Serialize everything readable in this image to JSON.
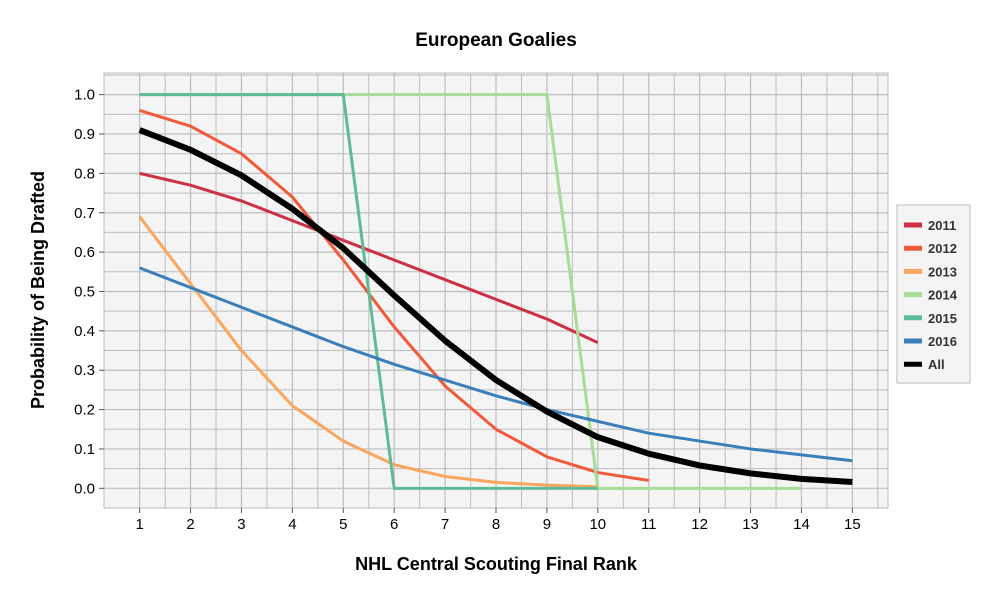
{
  "chart_data": {
    "type": "line",
    "title": "European Goalies",
    "xlabel": "NHL Central Scouting Final Rank",
    "ylabel": "Probability of Being Drafted",
    "xlim": [
      0.3,
      15.7
    ],
    "ylim": [
      -0.05,
      1.055
    ],
    "xticks": [
      1,
      2,
      3,
      4,
      5,
      6,
      7,
      8,
      9,
      10,
      11,
      12,
      13,
      14,
      15
    ],
    "yticks": [
      0.0,
      0.1,
      0.2,
      0.3,
      0.4,
      0.5,
      0.6,
      0.7,
      0.8,
      0.9,
      1.0
    ],
    "grid": true,
    "legend_position": "right",
    "series": [
      {
        "name": "2011",
        "color": "#cb3044",
        "width": 3,
        "x": [
          1,
          2,
          3,
          4,
          5,
          6,
          7,
          8,
          9,
          10
        ],
        "values": [
          0.8,
          0.77,
          0.73,
          0.68,
          0.63,
          0.58,
          0.53,
          0.48,
          0.43,
          0.37
        ]
      },
      {
        "name": "2012",
        "color": "#f05a3a",
        "width": 3,
        "x": [
          1,
          2,
          3,
          4,
          5,
          6,
          7,
          8,
          9,
          10,
          11
        ],
        "values": [
          0.96,
          0.92,
          0.85,
          0.74,
          0.58,
          0.41,
          0.26,
          0.15,
          0.08,
          0.04,
          0.02
        ]
      },
      {
        "name": "2013",
        "color": "#fca55d",
        "width": 3,
        "x": [
          1,
          2,
          3,
          4,
          5,
          6,
          7,
          8,
          9,
          10
        ],
        "values": [
          0.69,
          0.52,
          0.35,
          0.21,
          0.12,
          0.06,
          0.03,
          0.015,
          0.008,
          0.004
        ]
      },
      {
        "name": "2014",
        "color": "#a6dc93",
        "width": 3,
        "x": [
          1,
          2,
          3,
          4,
          5,
          6,
          7,
          8,
          9,
          10,
          11,
          12,
          13,
          14
        ],
        "values": [
          1,
          1,
          1,
          1,
          1,
          1,
          1,
          1,
          1,
          0,
          0,
          0,
          0,
          0
        ]
      },
      {
        "name": "2015",
        "color": "#5dbb96",
        "width": 3,
        "x": [
          1,
          2,
          3,
          4,
          5,
          6,
          7,
          8,
          9,
          10
        ],
        "values": [
          1,
          1,
          1,
          1,
          1,
          0,
          0,
          0,
          0,
          0
        ]
      },
      {
        "name": "2016",
        "color": "#3a7fba",
        "width": 3,
        "x": [
          1,
          2,
          3,
          4,
          5,
          6,
          7,
          8,
          9,
          10,
          11,
          12,
          13,
          14,
          15
        ],
        "values": [
          0.56,
          0.51,
          0.46,
          0.41,
          0.36,
          0.315,
          0.275,
          0.235,
          0.2,
          0.17,
          0.14,
          0.12,
          0.1,
          0.085,
          0.07
        ]
      },
      {
        "name": "All",
        "color": "#000000",
        "width": 6,
        "x": [
          1,
          2,
          3,
          4,
          5,
          6,
          7,
          8,
          9,
          10,
          11,
          12,
          13,
          14,
          15
        ],
        "values": [
          0.91,
          0.86,
          0.795,
          0.71,
          0.61,
          0.49,
          0.375,
          0.275,
          0.195,
          0.13,
          0.088,
          0.058,
          0.038,
          0.024,
          0.016
        ]
      }
    ]
  }
}
